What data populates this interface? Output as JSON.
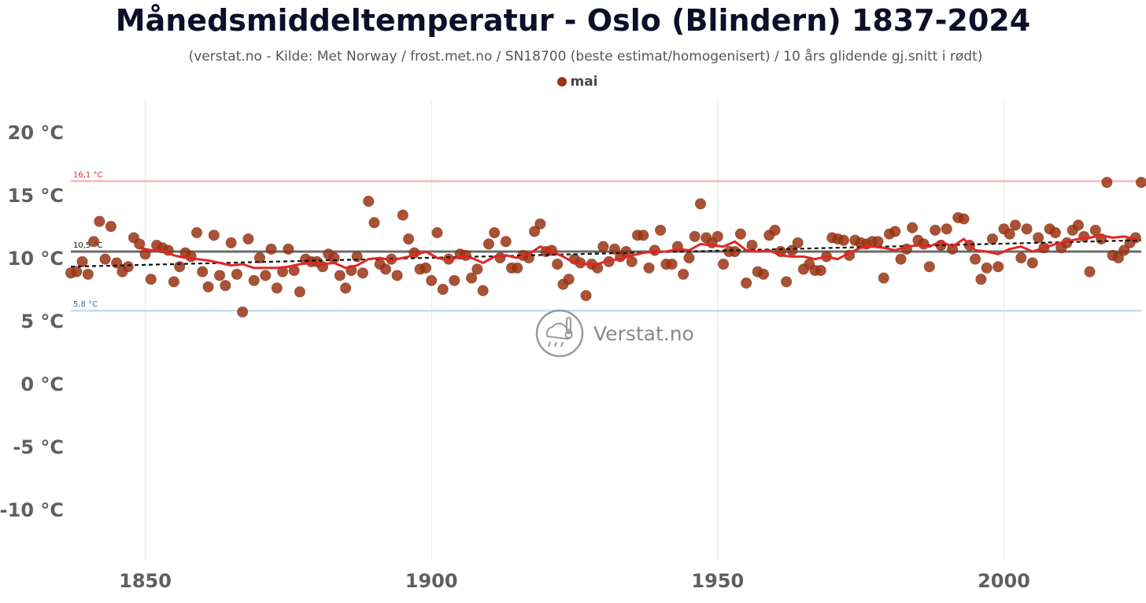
{
  "chart_data": {
    "type": "scatter",
    "title": "Månedsmiddeltemperatur - Oslo (Blindern) 1837-2024",
    "subtitle": "(verstat.no - Kilde: Met Norway / frost.met.no / SN18700 (beste estimat/homogenisert) / 10 års glidende gj.snitt i rødt)",
    "xlim": [
      1837,
      2024
    ],
    "ylim": [
      -14,
      23
    ],
    "x_ticks": [
      1850,
      1900,
      1950,
      2000
    ],
    "y_ticks": [
      -10,
      -5,
      0,
      5,
      10,
      15,
      20
    ],
    "y_tick_suffix": " °C",
    "grid": "vertical",
    "legend_position": "top-center",
    "series": [
      {
        "name": "mai",
        "color": "#9a3412",
        "points": [
          [
            1837,
            8.8
          ],
          [
            1838,
            8.9
          ],
          [
            1839,
            9.7
          ],
          [
            1840,
            8.7
          ],
          [
            1841,
            11.3
          ],
          [
            1842,
            12.9
          ],
          [
            1843,
            9.9
          ],
          [
            1844,
            12.5
          ],
          [
            1845,
            9.6
          ],
          [
            1846,
            8.9
          ],
          [
            1847,
            9.3
          ],
          [
            1848,
            11.6
          ],
          [
            1849,
            11.1
          ],
          [
            1850,
            10.3
          ],
          [
            1851,
            8.3
          ],
          [
            1852,
            11.0
          ],
          [
            1853,
            10.8
          ],
          [
            1854,
            10.6
          ],
          [
            1855,
            8.1
          ],
          [
            1856,
            9.3
          ],
          [
            1857,
            10.4
          ],
          [
            1858,
            10.1
          ],
          [
            1859,
            12.0
          ],
          [
            1860,
            8.9
          ],
          [
            1861,
            7.7
          ],
          [
            1862,
            11.8
          ],
          [
            1863,
            8.6
          ],
          [
            1864,
            7.8
          ],
          [
            1865,
            11.2
          ],
          [
            1866,
            8.7
          ],
          [
            1867,
            5.7
          ],
          [
            1868,
            11.5
          ],
          [
            1869,
            8.2
          ],
          [
            1870,
            10.0
          ],
          [
            1871,
            8.6
          ],
          [
            1872,
            10.7
          ],
          [
            1873,
            7.6
          ],
          [
            1874,
            8.9
          ],
          [
            1875,
            10.7
          ],
          [
            1876,
            9.0
          ],
          [
            1877,
            7.3
          ],
          [
            1878,
            9.9
          ],
          [
            1879,
            9.7
          ],
          [
            1880,
            9.7
          ],
          [
            1881,
            9.3
          ],
          [
            1882,
            10.3
          ],
          [
            1883,
            10.0
          ],
          [
            1884,
            8.6
          ],
          [
            1885,
            7.6
          ],
          [
            1886,
            9.0
          ],
          [
            1887,
            10.1
          ],
          [
            1888,
            8.8
          ],
          [
            1889,
            14.5
          ],
          [
            1890,
            12.8
          ],
          [
            1891,
            9.5
          ],
          [
            1892,
            9.1
          ],
          [
            1893,
            9.9
          ],
          [
            1894,
            8.6
          ],
          [
            1895,
            13.4
          ],
          [
            1896,
            11.5
          ],
          [
            1897,
            10.4
          ],
          [
            1898,
            9.1
          ],
          [
            1899,
            9.2
          ],
          [
            1900,
            8.2
          ],
          [
            1901,
            12.0
          ],
          [
            1902,
            7.5
          ],
          [
            1903,
            9.9
          ],
          [
            1904,
            8.2
          ],
          [
            1905,
            10.3
          ],
          [
            1906,
            10.2
          ],
          [
            1907,
            8.4
          ],
          [
            1908,
            9.1
          ],
          [
            1909,
            7.4
          ],
          [
            1910,
            11.1
          ],
          [
            1911,
            12.0
          ],
          [
            1912,
            10.0
          ],
          [
            1913,
            11.3
          ],
          [
            1914,
            9.2
          ],
          [
            1915,
            9.2
          ],
          [
            1916,
            10.2
          ],
          [
            1917,
            10.0
          ],
          [
            1918,
            12.1
          ],
          [
            1919,
            12.7
          ],
          [
            1920,
            10.5
          ],
          [
            1921,
            10.6
          ],
          [
            1922,
            9.5
          ],
          [
            1923,
            7.9
          ],
          [
            1924,
            8.3
          ],
          [
            1925,
            9.9
          ],
          [
            1926,
            9.6
          ],
          [
            1927,
            7.0
          ],
          [
            1928,
            9.5
          ],
          [
            1929,
            9.2
          ],
          [
            1930,
            10.9
          ],
          [
            1931,
            9.7
          ],
          [
            1932,
            10.7
          ],
          [
            1933,
            10.1
          ],
          [
            1934,
            10.5
          ],
          [
            1935,
            9.7
          ],
          [
            1936,
            11.8
          ],
          [
            1937,
            11.8
          ],
          [
            1938,
            9.2
          ],
          [
            1939,
            10.6
          ],
          [
            1940,
            12.2
          ],
          [
            1941,
            9.5
          ],
          [
            1942,
            9.5
          ],
          [
            1943,
            10.9
          ],
          [
            1944,
            8.7
          ],
          [
            1945,
            10.0
          ],
          [
            1946,
            11.7
          ],
          [
            1947,
            14.3
          ],
          [
            1948,
            11.6
          ],
          [
            1949,
            11.2
          ],
          [
            1950,
            11.7
          ],
          [
            1951,
            9.5
          ],
          [
            1952,
            10.5
          ],
          [
            1953,
            10.5
          ],
          [
            1954,
            11.9
          ],
          [
            1955,
            8.0
          ],
          [
            1956,
            11.0
          ],
          [
            1957,
            8.9
          ],
          [
            1958,
            8.7
          ],
          [
            1959,
            11.8
          ],
          [
            1960,
            12.2
          ],
          [
            1961,
            10.5
          ],
          [
            1962,
            8.1
          ],
          [
            1963,
            10.6
          ],
          [
            1964,
            11.2
          ],
          [
            1965,
            9.1
          ],
          [
            1966,
            9.5
          ],
          [
            1967,
            9.0
          ],
          [
            1968,
            9.0
          ],
          [
            1969,
            10.1
          ],
          [
            1970,
            11.6
          ],
          [
            1971,
            11.5
          ],
          [
            1972,
            11.4
          ],
          [
            1973,
            10.2
          ],
          [
            1974,
            11.4
          ],
          [
            1975,
            11.2
          ],
          [
            1976,
            11.1
          ],
          [
            1977,
            11.3
          ],
          [
            1978,
            11.3
          ],
          [
            1979,
            8.4
          ],
          [
            1980,
            11.9
          ],
          [
            1981,
            12.1
          ],
          [
            1982,
            9.9
          ],
          [
            1983,
            10.7
          ],
          [
            1984,
            12.4
          ],
          [
            1985,
            11.4
          ],
          [
            1986,
            11.1
          ],
          [
            1987,
            9.3
          ],
          [
            1988,
            12.2
          ],
          [
            1989,
            11.0
          ],
          [
            1990,
            12.3
          ],
          [
            1991,
            10.7
          ],
          [
            1992,
            13.2
          ],
          [
            1993,
            13.1
          ],
          [
            1994,
            11.0
          ],
          [
            1995,
            9.9
          ],
          [
            1996,
            8.3
          ],
          [
            1997,
            9.2
          ],
          [
            1998,
            11.5
          ],
          [
            1999,
            9.3
          ],
          [
            2000,
            12.3
          ],
          [
            2001,
            11.9
          ],
          [
            2002,
            12.6
          ],
          [
            2003,
            10.0
          ],
          [
            2004,
            12.3
          ],
          [
            2005,
            9.6
          ],
          [
            2006,
            11.6
          ],
          [
            2007,
            10.8
          ],
          [
            2008,
            12.3
          ],
          [
            2009,
            12.0
          ],
          [
            2010,
            10.8
          ],
          [
            2011,
            11.2
          ],
          [
            2012,
            12.2
          ],
          [
            2013,
            12.6
          ],
          [
            2014,
            11.7
          ],
          [
            2015,
            8.9
          ],
          [
            2016,
            12.2
          ],
          [
            2017,
            11.5
          ],
          [
            2018,
            16.0
          ],
          [
            2019,
            10.2
          ],
          [
            2020,
            10.0
          ],
          [
            2021,
            10.6
          ],
          [
            2022,
            11.2
          ],
          [
            2023,
            11.6
          ],
          [
            2024,
            16.0
          ]
        ]
      }
    ],
    "moving_average": {
      "color": "#e32626",
      "points": [
        [
          1849,
          10.8
        ],
        [
          1851,
          10.6
        ],
        [
          1853,
          10.6
        ],
        [
          1855,
          10.2
        ],
        [
          1857,
          10.0
        ],
        [
          1859,
          9.9
        ],
        [
          1861,
          9.8
        ],
        [
          1863,
          9.6
        ],
        [
          1865,
          9.4
        ],
        [
          1867,
          9.5
        ],
        [
          1869,
          9.2
        ],
        [
          1871,
          9.2
        ],
        [
          1873,
          9.2
        ],
        [
          1875,
          9.3
        ],
        [
          1877,
          9.5
        ],
        [
          1879,
          9.6
        ],
        [
          1881,
          9.5
        ],
        [
          1883,
          9.6
        ],
        [
          1885,
          9.2
        ],
        [
          1887,
          9.4
        ],
        [
          1889,
          9.9
        ],
        [
          1891,
          10.0
        ],
        [
          1893,
          9.8
        ],
        [
          1895,
          10.0
        ],
        [
          1897,
          10.2
        ],
        [
          1899,
          10.5
        ],
        [
          1901,
          10.0
        ],
        [
          1903,
          9.8
        ],
        [
          1905,
          10.1
        ],
        [
          1907,
          10.0
        ],
        [
          1909,
          9.6
        ],
        [
          1911,
          10.1
        ],
        [
          1913,
          10.2
        ],
        [
          1915,
          10.0
        ],
        [
          1917,
          10.3
        ],
        [
          1919,
          10.9
        ],
        [
          1921,
          10.5
        ],
        [
          1923,
          10.1
        ],
        [
          1925,
          9.6
        ],
        [
          1927,
          9.5
        ],
        [
          1929,
          9.5
        ],
        [
          1931,
          9.8
        ],
        [
          1933,
          9.9
        ],
        [
          1935,
          10.2
        ],
        [
          1937,
          10.4
        ],
        [
          1939,
          10.5
        ],
        [
          1941,
          10.5
        ],
        [
          1943,
          10.7
        ],
        [
          1945,
          10.6
        ],
        [
          1947,
          11.1
        ],
        [
          1949,
          11.0
        ],
        [
          1951,
          10.9
        ],
        [
          1953,
          11.3
        ],
        [
          1955,
          10.6
        ],
        [
          1957,
          10.5
        ],
        [
          1959,
          10.6
        ],
        [
          1961,
          10.2
        ],
        [
          1963,
          10.1
        ],
        [
          1965,
          10.1
        ],
        [
          1967,
          9.9
        ],
        [
          1969,
          10.1
        ],
        [
          1971,
          9.9
        ],
        [
          1973,
          10.4
        ],
        [
          1975,
          10.8
        ],
        [
          1977,
          10.9
        ],
        [
          1979,
          10.8
        ],
        [
          1981,
          10.6
        ],
        [
          1983,
          10.9
        ],
        [
          1985,
          11.0
        ],
        [
          1987,
          10.9
        ],
        [
          1989,
          11.3
        ],
        [
          1991,
          10.9
        ],
        [
          1993,
          11.5
        ],
        [
          1995,
          10.6
        ],
        [
          1997,
          10.5
        ],
        [
          1999,
          10.3
        ],
        [
          2001,
          10.7
        ],
        [
          2003,
          10.9
        ],
        [
          2005,
          10.5
        ],
        [
          2007,
          10.8
        ],
        [
          2009,
          11.1
        ],
        [
          2011,
          11.3
        ],
        [
          2013,
          11.5
        ],
        [
          2015,
          11.6
        ],
        [
          2017,
          11.8
        ],
        [
          2019,
          11.6
        ],
        [
          2021,
          11.7
        ],
        [
          2023,
          11.5
        ]
      ]
    },
    "trend": {
      "start": [
        1837,
        9.3
      ],
      "end": [
        2024,
        11.4
      ],
      "color": "#111111"
    },
    "reference_lines": [
      {
        "value": 16.1,
        "label": "16,1 °C",
        "color": "#f9b6bd",
        "label_color": "#d62a2a"
      },
      {
        "value": 10.5,
        "label": "10,5 °C",
        "color": "#6b6b6b",
        "label_color": "#111111"
      },
      {
        "value": 5.8,
        "label": "5,8 °C",
        "color": "#c6dcef",
        "label_color": "#2b6cb0"
      }
    ],
    "watermark": "Verstat.no"
  }
}
